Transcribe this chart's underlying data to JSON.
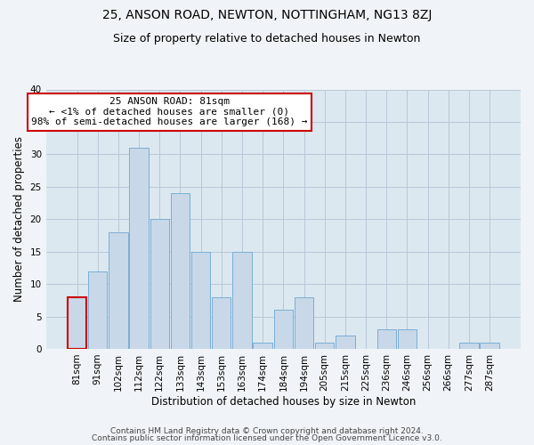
{
  "title": "25, ANSON ROAD, NEWTON, NOTTINGHAM, NG13 8ZJ",
  "subtitle": "Size of property relative to detached houses in Newton",
  "xlabel": "Distribution of detached houses by size in Newton",
  "ylabel": "Number of detached properties",
  "bar_color": "#c8d8e8",
  "bar_edge_color": "#7aaed4",
  "categories": [
    "81sqm",
    "91sqm",
    "102sqm",
    "112sqm",
    "122sqm",
    "133sqm",
    "143sqm",
    "153sqm",
    "163sqm",
    "174sqm",
    "184sqm",
    "194sqm",
    "205sqm",
    "215sqm",
    "225sqm",
    "236sqm",
    "246sqm",
    "256sqm",
    "266sqm",
    "277sqm",
    "287sqm"
  ],
  "values": [
    8,
    12,
    18,
    31,
    20,
    24,
    15,
    8,
    15,
    1,
    6,
    8,
    1,
    2,
    0,
    3,
    3,
    0,
    0,
    1,
    1
  ],
  "ylim": [
    0,
    40
  ],
  "yticks": [
    0,
    5,
    10,
    15,
    20,
    25,
    30,
    35,
    40
  ],
  "annotation_box_text": "25 ANSON ROAD: 81sqm\n← <1% of detached houses are smaller (0)\n98% of semi-detached houses are larger (168) →",
  "annotation_box_edge_color": "#cc0000",
  "highlight_bar_index": 0,
  "highlight_bar_edge_color": "#cc0000",
  "footer_line1": "Contains HM Land Registry data © Crown copyright and database right 2024.",
  "footer_line2": "Contains public sector information licensed under the Open Government Licence v3.0.",
  "bg_color": "#f0f4f8",
  "plot_bg_color": "#dce8f0",
  "grid_color": "#b8c8d8",
  "title_fontsize": 10,
  "subtitle_fontsize": 9,
  "xlabel_fontsize": 8.5,
  "ylabel_fontsize": 8.5,
  "tick_fontsize": 7.5,
  "annotation_fontsize": 8,
  "footer_fontsize": 6.5
}
